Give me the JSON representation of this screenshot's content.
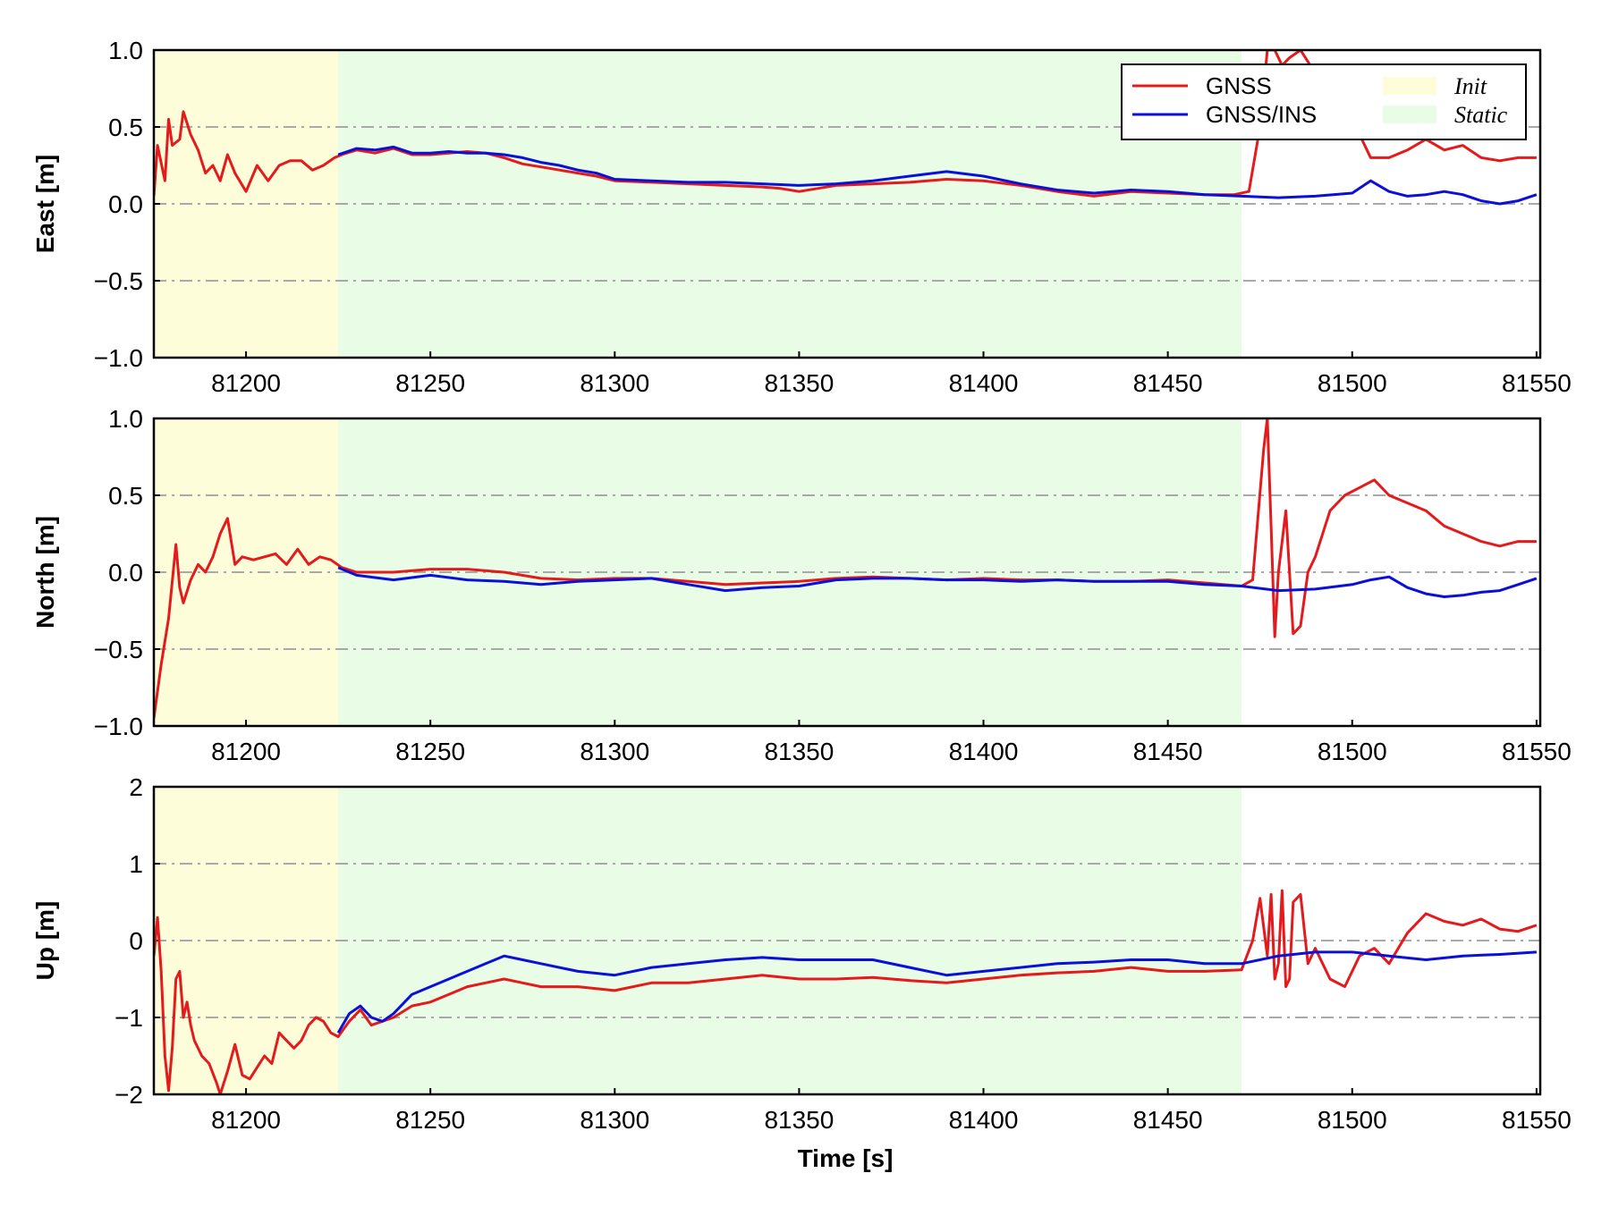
{
  "colors": {
    "gnss": "#e41a1c",
    "gnss_ins": "#0a10d8",
    "init_region": "#fdfdd9",
    "static_region": "#e9fce6",
    "grid": "#a9a9a9"
  },
  "legend": {
    "placement": "top-right",
    "series": [
      "GNSS",
      "GNSS/INS"
    ],
    "regions": [
      "Init",
      "Static"
    ]
  },
  "chart_data": [
    {
      "type": "line",
      "title": "",
      "xlabel": "",
      "ylabel": "East [m]",
      "xlim": [
        81175,
        81551
      ],
      "ylim": [
        -1.0,
        1.0
      ],
      "xticks": [
        "81200",
        "81250",
        "81300",
        "81350",
        "81400",
        "81450",
        "81500",
        "81550"
      ],
      "yticks": [
        "1.0",
        "0.5",
        "0.0",
        "−0.5",
        "−1.0"
      ],
      "grid": "horizontal dash-dot",
      "regions": [
        {
          "name": "Init",
          "from": 81175,
          "to": 81225
        },
        {
          "name": "Static",
          "from": 81225,
          "to": 81470
        }
      ],
      "series": [
        {
          "name": "GNSS",
          "x": [
            81175,
            81176,
            81178,
            81179,
            81180,
            81182,
            81183,
            81185,
            81187,
            81189,
            81191,
            81193,
            81195,
            81197,
            81200,
            81203,
            81206,
            81209,
            81212,
            81215,
            81218,
            81221,
            81224,
            81226,
            81230,
            81235,
            81240,
            81245,
            81250,
            81255,
            81260,
            81265,
            81270,
            81275,
            81280,
            81285,
            81290,
            81295,
            81300,
            81310,
            81320,
            81330,
            81340,
            81345,
            81350,
            81355,
            81360,
            81370,
            81380,
            81390,
            81400,
            81410,
            81420,
            81430,
            81440,
            81450,
            81460,
            81468,
            81472,
            81475,
            81477,
            81479,
            81481,
            81483,
            81486,
            81490,
            81495,
            81500,
            81505,
            81510,
            81515,
            81520,
            81525,
            81530,
            81535,
            81540,
            81545,
            81550
          ],
          "y": [
            0.05,
            0.38,
            0.15,
            0.55,
            0.38,
            0.42,
            0.6,
            0.45,
            0.35,
            0.2,
            0.25,
            0.15,
            0.32,
            0.2,
            0.08,
            0.25,
            0.15,
            0.25,
            0.28,
            0.28,
            0.22,
            0.25,
            0.3,
            0.32,
            0.35,
            0.33,
            0.36,
            0.32,
            0.32,
            0.33,
            0.34,
            0.33,
            0.3,
            0.26,
            0.24,
            0.22,
            0.2,
            0.18,
            0.15,
            0.14,
            0.13,
            0.12,
            0.11,
            0.1,
            0.08,
            0.1,
            0.12,
            0.13,
            0.14,
            0.16,
            0.15,
            0.12,
            0.08,
            0.05,
            0.08,
            0.07,
            0.06,
            0.06,
            0.08,
            0.5,
            1.0,
            1.0,
            0.9,
            0.95,
            1.0,
            0.85,
            0.65,
            0.55,
            0.3,
            0.3,
            0.35,
            0.42,
            0.35,
            0.38,
            0.3,
            0.28,
            0.3,
            0.3
          ]
        },
        {
          "name": "GNSS/INS",
          "x": [
            81225,
            81230,
            81235,
            81240,
            81245,
            81250,
            81255,
            81260,
            81265,
            81270,
            81275,
            81280,
            81285,
            81290,
            81295,
            81300,
            81310,
            81320,
            81330,
            81340,
            81350,
            81360,
            81370,
            81380,
            81390,
            81400,
            81410,
            81420,
            81430,
            81440,
            81450,
            81460,
            81470,
            81480,
            81490,
            81500,
            81505,
            81510,
            81515,
            81520,
            81525,
            81530,
            81535,
            81540,
            81545,
            81550
          ],
          "y": [
            0.32,
            0.36,
            0.35,
            0.37,
            0.33,
            0.33,
            0.34,
            0.33,
            0.33,
            0.32,
            0.3,
            0.27,
            0.25,
            0.22,
            0.2,
            0.16,
            0.15,
            0.14,
            0.14,
            0.13,
            0.12,
            0.13,
            0.15,
            0.18,
            0.21,
            0.18,
            0.13,
            0.09,
            0.07,
            0.09,
            0.08,
            0.06,
            0.05,
            0.04,
            0.05,
            0.07,
            0.15,
            0.08,
            0.05,
            0.06,
            0.08,
            0.06,
            0.02,
            0.0,
            0.02,
            0.06
          ]
        }
      ]
    },
    {
      "type": "line",
      "title": "",
      "xlabel": "",
      "ylabel": "North [m]",
      "xlim": [
        81175,
        81551
      ],
      "ylim": [
        -1.0,
        1.0
      ],
      "xticks": [
        "81200",
        "81250",
        "81300",
        "81350",
        "81400",
        "81450",
        "81500",
        "81550"
      ],
      "yticks": [
        "1.0",
        "0.5",
        "0.0",
        "−0.5",
        "−1.0"
      ],
      "grid": "horizontal dash-dot",
      "regions": [
        {
          "name": "Init",
          "from": 81175,
          "to": 81225
        },
        {
          "name": "Static",
          "from": 81225,
          "to": 81470
        }
      ],
      "series": [
        {
          "name": "GNSS",
          "x": [
            81175,
            81177,
            81179,
            81181,
            81182,
            81183,
            81185,
            81187,
            81189,
            81191,
            81193,
            81195,
            81197,
            81199,
            81202,
            81205,
            81208,
            81211,
            81214,
            81217,
            81220,
            81223,
            81226,
            81230,
            81240,
            81250,
            81260,
            81270,
            81280,
            81290,
            81300,
            81310,
            81320,
            81330,
            81340,
            81350,
            81360,
            81370,
            81380,
            81390,
            81400,
            81410,
            81420,
            81430,
            81440,
            81450,
            81460,
            81470,
            81473,
            81476,
            81477,
            81478,
            81479,
            81480,
            81482,
            81484,
            81486,
            81488,
            81490,
            81494,
            81498,
            81502,
            81506,
            81510,
            81515,
            81520,
            81525,
            81530,
            81535,
            81540,
            81545,
            81550
          ],
          "y": [
            -0.95,
            -0.6,
            -0.3,
            0.18,
            -0.1,
            -0.2,
            -0.05,
            0.05,
            0.0,
            0.1,
            0.25,
            0.35,
            0.05,
            0.1,
            0.08,
            0.1,
            0.12,
            0.05,
            0.15,
            0.05,
            0.1,
            0.08,
            0.03,
            0.0,
            0.0,
            0.02,
            0.02,
            0.0,
            -0.04,
            -0.05,
            -0.04,
            -0.04,
            -0.06,
            -0.08,
            -0.07,
            -0.06,
            -0.04,
            -0.03,
            -0.04,
            -0.05,
            -0.04,
            -0.05,
            -0.05,
            -0.06,
            -0.06,
            -0.05,
            -0.07,
            -0.09,
            -0.05,
            0.8,
            1.0,
            0.3,
            -0.42,
            0.0,
            0.4,
            -0.4,
            -0.35,
            0.0,
            0.1,
            0.4,
            0.5,
            0.55,
            0.6,
            0.5,
            0.45,
            0.4,
            0.3,
            0.25,
            0.2,
            0.17,
            0.2,
            0.2
          ]
        },
        {
          "name": "GNSS/INS",
          "x": [
            81225,
            81230,
            81240,
            81250,
            81260,
            81270,
            81280,
            81290,
            81300,
            81310,
            81320,
            81330,
            81340,
            81350,
            81360,
            81370,
            81380,
            81390,
            81400,
            81410,
            81420,
            81430,
            81440,
            81450,
            81460,
            81470,
            81480,
            81490,
            81500,
            81505,
            81510,
            81515,
            81520,
            81525,
            81530,
            81535,
            81540,
            81545,
            81550
          ],
          "y": [
            0.03,
            -0.02,
            -0.05,
            -0.02,
            -0.05,
            -0.06,
            -0.08,
            -0.06,
            -0.05,
            -0.04,
            -0.08,
            -0.12,
            -0.1,
            -0.09,
            -0.05,
            -0.04,
            -0.04,
            -0.05,
            -0.05,
            -0.06,
            -0.05,
            -0.06,
            -0.06,
            -0.06,
            -0.08,
            -0.09,
            -0.12,
            -0.11,
            -0.08,
            -0.05,
            -0.03,
            -0.1,
            -0.14,
            -0.16,
            -0.15,
            -0.13,
            -0.12,
            -0.08,
            -0.04
          ]
        }
      ]
    },
    {
      "type": "line",
      "title": "",
      "xlabel": "Time [s]",
      "ylabel": "Up [m]",
      "xlim": [
        81175,
        81551
      ],
      "ylim": [
        -2,
        2
      ],
      "xticks": [
        "81200",
        "81250",
        "81300",
        "81350",
        "81400",
        "81450",
        "81500",
        "81550"
      ],
      "yticks": [
        "2",
        "1",
        "0",
        "−1",
        "−2"
      ],
      "grid": "horizontal dash-dot",
      "regions": [
        {
          "name": "Init",
          "from": 81175,
          "to": 81225
        },
        {
          "name": "Static",
          "from": 81225,
          "to": 81470
        }
      ],
      "series": [
        {
          "name": "GNSS",
          "x": [
            81175,
            81176,
            81177,
            81178,
            81179,
            81180,
            81181,
            81182,
            81183,
            81184,
            81185,
            81186,
            81187,
            81188,
            81190,
            81192,
            81193,
            81195,
            81197,
            81199,
            81201,
            81203,
            81205,
            81207,
            81209,
            81211,
            81213,
            81215,
            81217,
            81219,
            81221,
            81223,
            81225,
            81228,
            81231,
            81234,
            81237,
            81240,
            81245,
            81250,
            81255,
            81260,
            81265,
            81270,
            81275,
            81280,
            81290,
            81300,
            81310,
            81320,
            81330,
            81340,
            81350,
            81360,
            81370,
            81380,
            81390,
            81400,
            81410,
            81420,
            81430,
            81440,
            81450,
            81460,
            81470,
            81473,
            81475,
            81477,
            81478,
            81479,
            81480,
            81481,
            81482,
            81483,
            81484,
            81486,
            81488,
            81490,
            81494,
            81498,
            81502,
            81506,
            81510,
            81515,
            81520,
            81525,
            81530,
            81535,
            81540,
            81545,
            81550
          ],
          "y": [
            -0.2,
            0.3,
            -0.4,
            -1.5,
            -1.95,
            -1.4,
            -0.5,
            -0.4,
            -1.0,
            -0.8,
            -1.1,
            -1.3,
            -1.4,
            -1.5,
            -1.6,
            -1.85,
            -2.0,
            -1.7,
            -1.35,
            -1.75,
            -1.8,
            -1.65,
            -1.5,
            -1.6,
            -1.2,
            -1.3,
            -1.4,
            -1.3,
            -1.1,
            -1.0,
            -1.05,
            -1.2,
            -1.25,
            -1.05,
            -0.9,
            -1.1,
            -1.05,
            -1.0,
            -0.85,
            -0.8,
            -0.7,
            -0.6,
            -0.55,
            -0.5,
            -0.55,
            -0.6,
            -0.6,
            -0.65,
            -0.55,
            -0.55,
            -0.5,
            -0.45,
            -0.5,
            -0.5,
            -0.48,
            -0.52,
            -0.55,
            -0.5,
            -0.45,
            -0.42,
            -0.4,
            -0.35,
            -0.4,
            -0.4,
            -0.38,
            0.0,
            0.55,
            -0.2,
            0.6,
            -0.5,
            -0.3,
            0.65,
            -0.6,
            -0.5,
            0.5,
            0.6,
            -0.3,
            -0.1,
            -0.5,
            -0.6,
            -0.2,
            -0.1,
            -0.3,
            0.1,
            0.35,
            0.25,
            0.2,
            0.28,
            0.15,
            0.12,
            0.2
          ]
        },
        {
          "name": "GNSS/INS",
          "x": [
            81225,
            81228,
            81231,
            81234,
            81237,
            81240,
            81245,
            81250,
            81255,
            81260,
            81265,
            81270,
            81275,
            81280,
            81290,
            81300,
            81310,
            81320,
            81330,
            81340,
            81350,
            81360,
            81370,
            81380,
            81390,
            81400,
            81410,
            81420,
            81430,
            81440,
            81450,
            81460,
            81470,
            81480,
            81490,
            81500,
            81510,
            81520,
            81530,
            81540,
            81550
          ],
          "y": [
            -1.2,
            -0.95,
            -0.85,
            -1.0,
            -1.05,
            -0.95,
            -0.7,
            -0.6,
            -0.5,
            -0.4,
            -0.3,
            -0.2,
            -0.25,
            -0.3,
            -0.4,
            -0.45,
            -0.35,
            -0.3,
            -0.25,
            -0.22,
            -0.25,
            -0.25,
            -0.25,
            -0.35,
            -0.45,
            -0.4,
            -0.35,
            -0.3,
            -0.28,
            -0.25,
            -0.25,
            -0.3,
            -0.3,
            -0.2,
            -0.15,
            -0.15,
            -0.2,
            -0.25,
            -0.2,
            -0.18,
            -0.15
          ]
        }
      ]
    }
  ]
}
